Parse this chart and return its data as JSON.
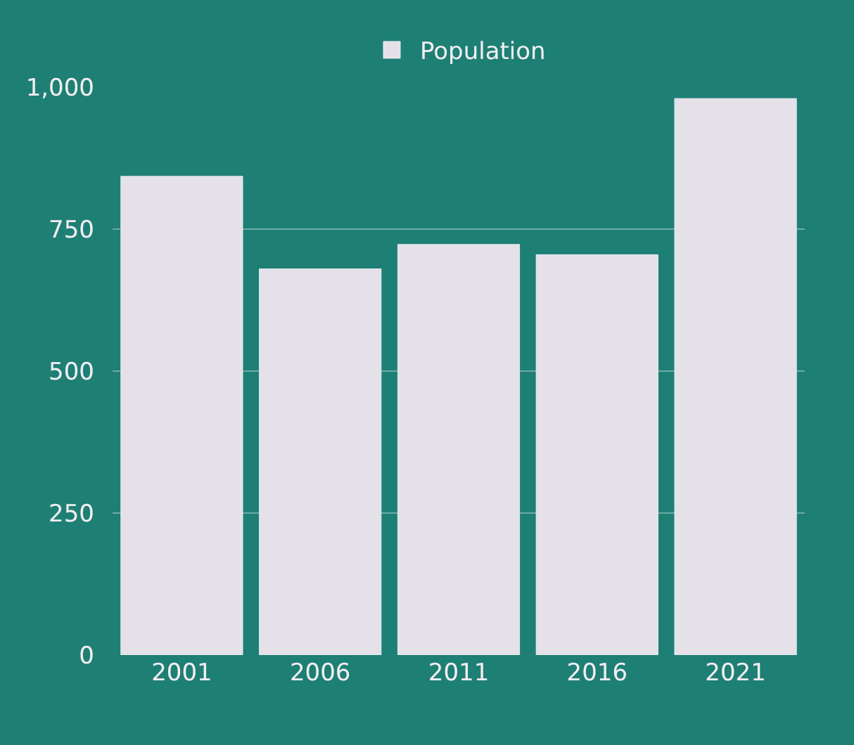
{
  "chart_data": {
    "type": "bar",
    "categories": [
      "2001",
      "2006",
      "2011",
      "2016",
      "2021"
    ],
    "series": [
      {
        "name": "Population",
        "color": "#e5e1e8",
        "values": [
          843,
          680,
          723,
          705,
          980
        ]
      }
    ],
    "ylim": [
      0,
      1000
    ],
    "yticks": [
      0,
      250,
      500,
      750,
      {
        "value": 1000,
        "label": "1,000"
      }
    ],
    "grid": "y",
    "legend": "top"
  }
}
